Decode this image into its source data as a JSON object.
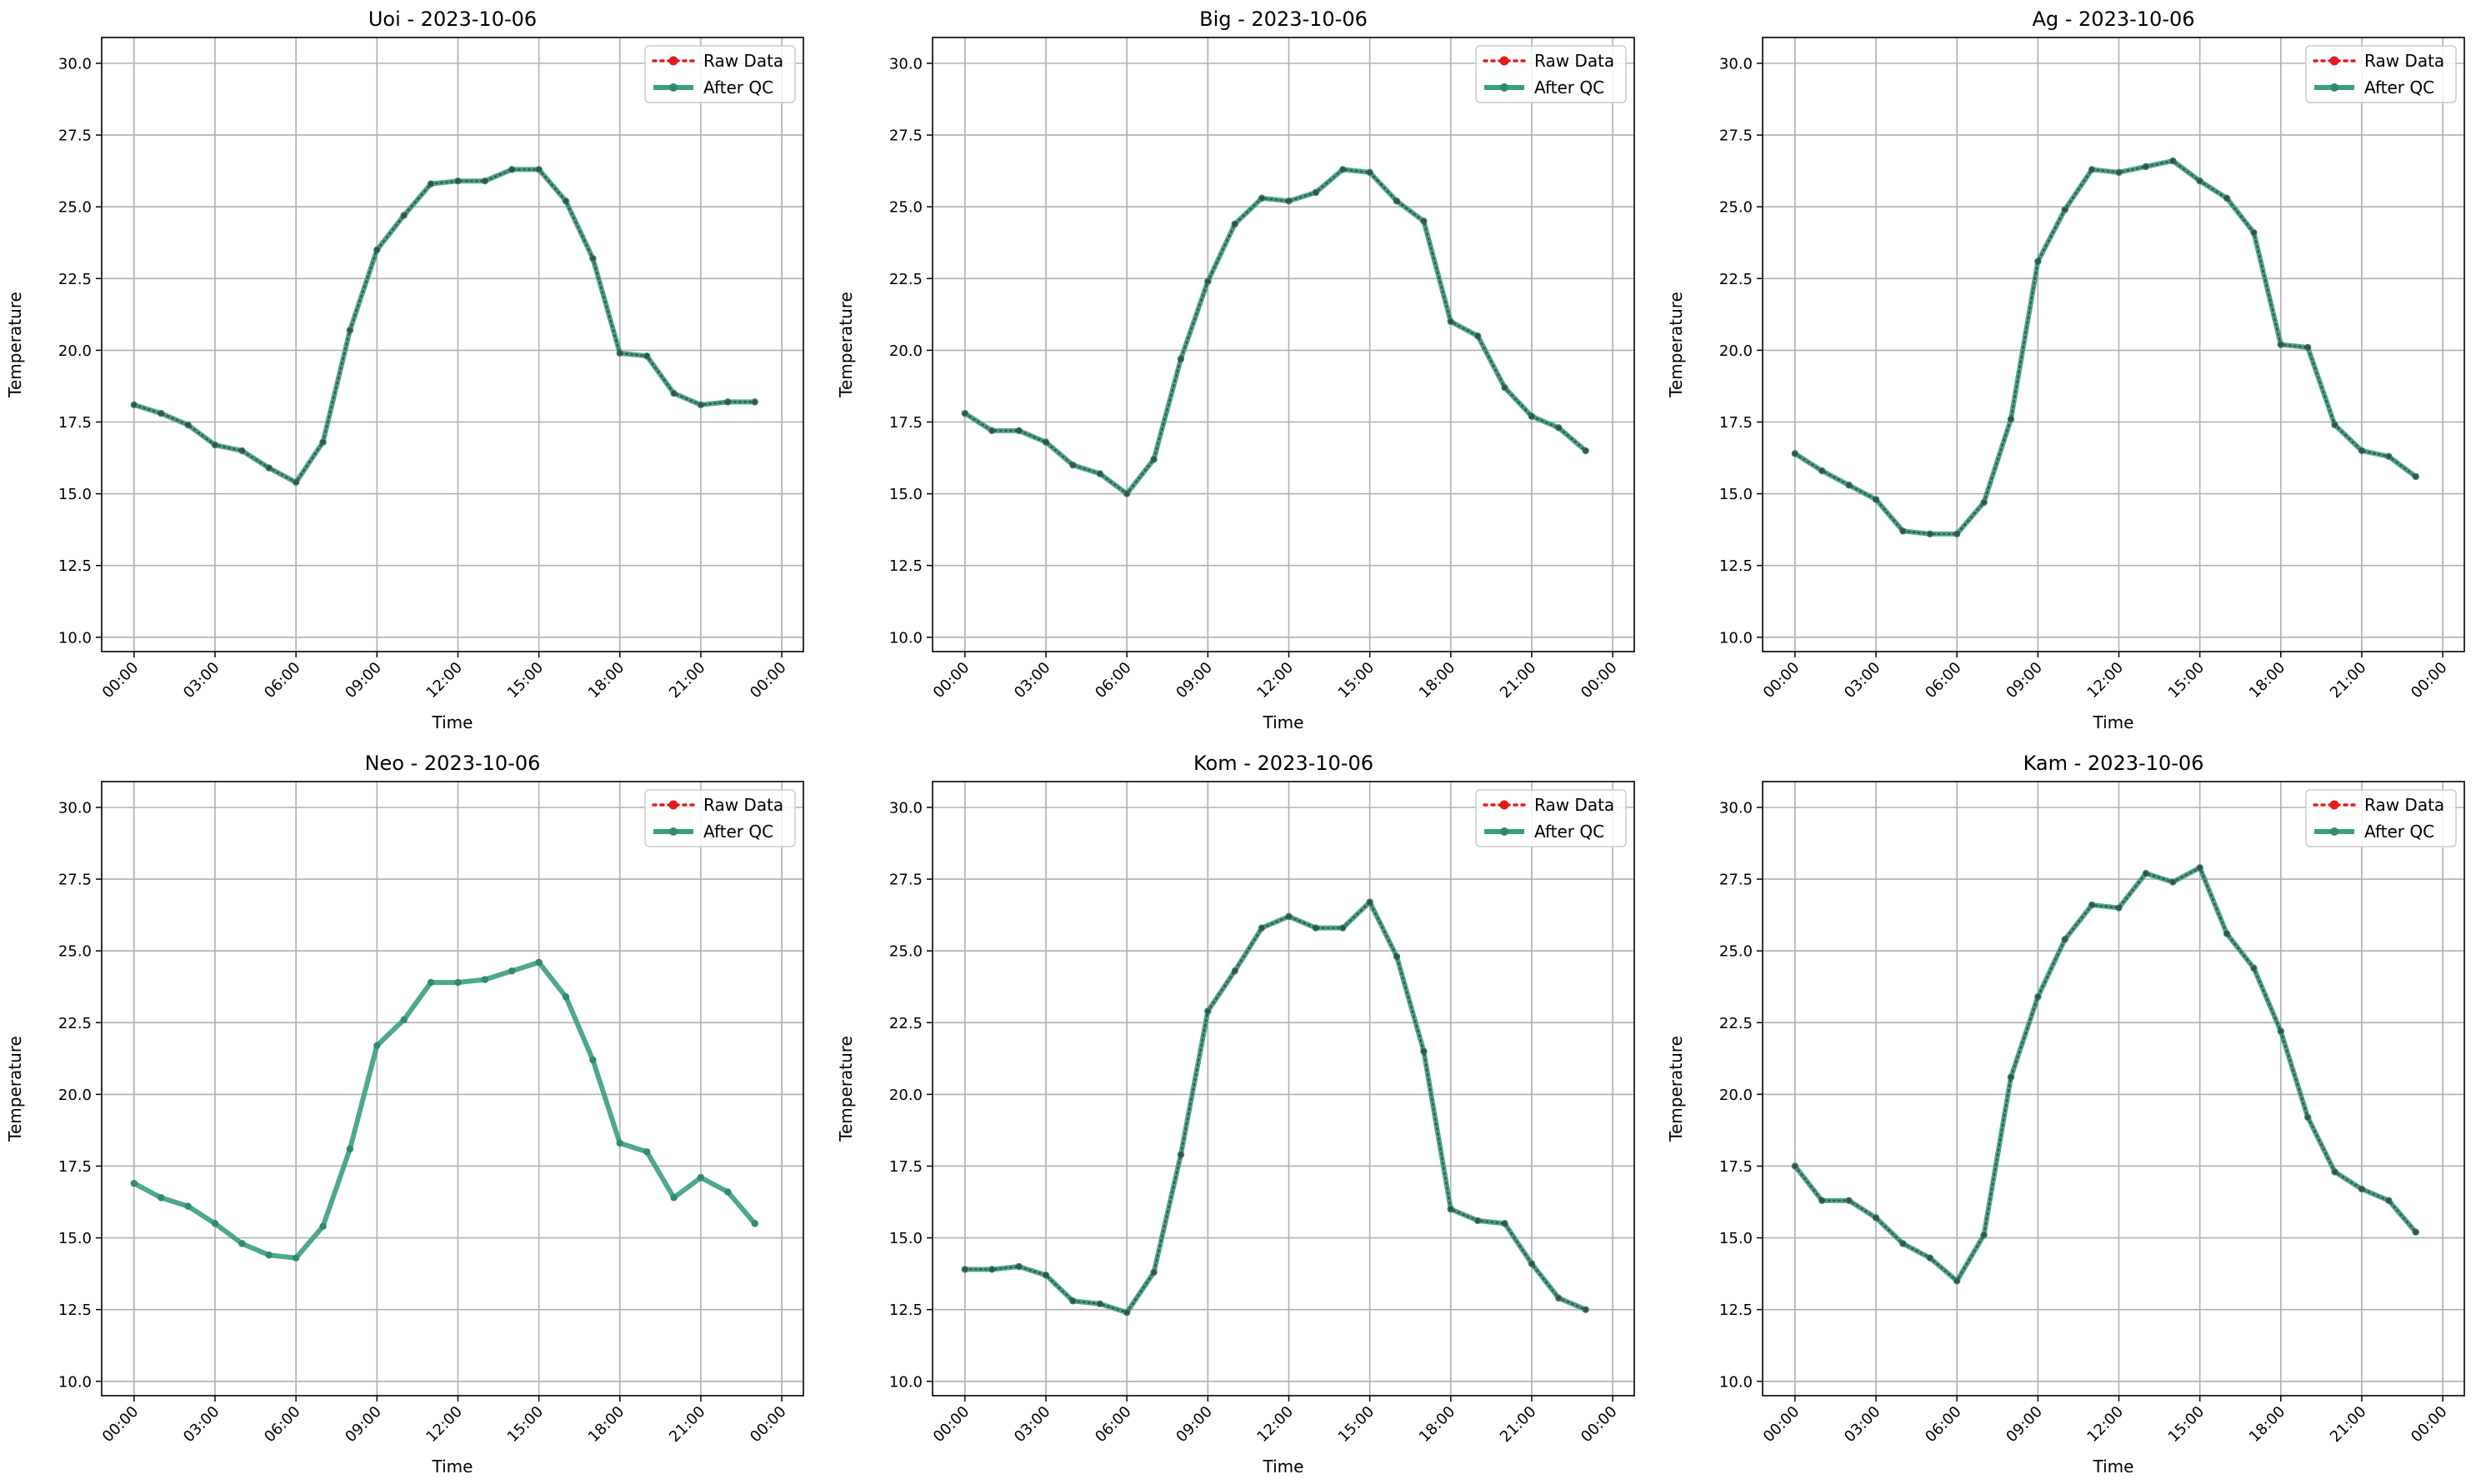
{
  "chart_data": [
    {
      "type": "line",
      "title": "Uoi - 2023-10-06",
      "xlabel": "Time",
      "ylabel": "Temperature",
      "ylim": [
        9.5,
        30.9
      ],
      "yticks": [
        "10.0",
        "12.5",
        "15.0",
        "17.5",
        "20.0",
        "22.5",
        "25.0",
        "27.5",
        "30.0"
      ],
      "xticks": [
        "00:00",
        "03:00",
        "06:00",
        "09:00",
        "12:00",
        "15:00",
        "18:00",
        "21:00",
        "00:00"
      ],
      "x_hours": [
        0,
        1,
        2,
        3,
        4,
        5,
        6,
        7,
        8,
        9,
        10,
        11,
        12,
        13,
        14,
        15,
        16,
        17,
        18,
        19,
        20,
        21,
        22,
        23
      ],
      "legend": [
        "Raw Data",
        "After QC"
      ],
      "grid": true,
      "legend_position": "top-right",
      "series": [
        {
          "name": "Raw Data",
          "values": [
            18.1,
            17.8,
            17.4,
            16.7,
            16.5,
            15.9,
            15.4,
            16.8,
            20.7,
            23.5,
            24.7,
            25.8,
            25.9,
            25.9,
            26.3,
            26.3,
            25.2,
            23.2,
            19.9,
            19.8,
            18.5,
            18.1,
            18.2,
            18.2
          ]
        },
        {
          "name": "After QC",
          "values": [
            18.1,
            17.8,
            17.4,
            16.7,
            16.5,
            15.9,
            15.4,
            16.8,
            20.7,
            23.5,
            24.7,
            25.8,
            25.9,
            25.9,
            26.3,
            26.3,
            25.2,
            23.2,
            19.9,
            19.8,
            18.5,
            18.1,
            18.2,
            18.2
          ]
        }
      ]
    },
    {
      "type": "line",
      "title": "Big - 2023-10-06",
      "xlabel": "Time",
      "ylabel": "Temperature",
      "ylim": [
        9.5,
        30.9
      ],
      "yticks": [
        "10.0",
        "12.5",
        "15.0",
        "17.5",
        "20.0",
        "22.5",
        "25.0",
        "27.5",
        "30.0"
      ],
      "xticks": [
        "00:00",
        "03:00",
        "06:00",
        "09:00",
        "12:00",
        "15:00",
        "18:00",
        "21:00",
        "00:00"
      ],
      "x_hours": [
        0,
        1,
        2,
        3,
        4,
        5,
        6,
        7,
        8,
        9,
        10,
        11,
        12,
        13,
        14,
        15,
        16,
        17,
        18,
        19,
        20,
        21,
        22,
        23
      ],
      "legend": [
        "Raw Data",
        "After QC"
      ],
      "grid": true,
      "legend_position": "top-right",
      "series": [
        {
          "name": "Raw Data",
          "values": [
            17.8,
            17.2,
            17.2,
            16.8,
            16.0,
            15.7,
            15.0,
            16.2,
            19.7,
            22.4,
            24.4,
            25.3,
            25.2,
            25.5,
            26.3,
            26.2,
            25.2,
            24.5,
            21.0,
            20.5,
            18.7,
            17.7,
            17.3,
            16.5
          ]
        },
        {
          "name": "After QC",
          "values": [
            17.8,
            17.2,
            17.2,
            16.8,
            16.0,
            15.7,
            15.0,
            16.2,
            19.7,
            22.4,
            24.4,
            25.3,
            25.2,
            25.5,
            26.3,
            26.2,
            25.2,
            24.5,
            21.0,
            20.5,
            18.7,
            17.7,
            17.3,
            16.5
          ]
        }
      ]
    },
    {
      "type": "line",
      "title": "Ag - 2023-10-06",
      "xlabel": "Time",
      "ylabel": "Temperature",
      "ylim": [
        9.5,
        30.9
      ],
      "yticks": [
        "10.0",
        "12.5",
        "15.0",
        "17.5",
        "20.0",
        "22.5",
        "25.0",
        "27.5",
        "30.0"
      ],
      "xticks": [
        "00:00",
        "03:00",
        "06:00",
        "09:00",
        "12:00",
        "15:00",
        "18:00",
        "21:00",
        "00:00"
      ],
      "x_hours": [
        0,
        1,
        2,
        3,
        4,
        5,
        6,
        7,
        8,
        9,
        10,
        11,
        12,
        13,
        14,
        15,
        16,
        17,
        18,
        19,
        20,
        21,
        22,
        23
      ],
      "legend": [
        "Raw Data",
        "After QC"
      ],
      "grid": true,
      "legend_position": "top-right",
      "series": [
        {
          "name": "Raw Data",
          "values": [
            16.4,
            15.8,
            15.3,
            14.8,
            13.7,
            13.6,
            13.6,
            14.7,
            17.6,
            23.1,
            24.9,
            26.3,
            26.2,
            26.4,
            26.6,
            25.9,
            25.3,
            24.1,
            20.2,
            20.1,
            17.4,
            16.5,
            16.3,
            15.6
          ]
        },
        {
          "name": "After QC",
          "values": [
            16.4,
            15.8,
            15.3,
            14.8,
            13.7,
            13.6,
            13.6,
            14.7,
            17.6,
            23.1,
            24.9,
            26.3,
            26.2,
            26.4,
            26.6,
            25.9,
            25.3,
            24.1,
            20.2,
            20.1,
            17.4,
            16.5,
            16.3,
            15.6
          ]
        }
      ]
    },
    {
      "type": "line",
      "title": "Neo - 2023-10-06",
      "xlabel": "Time",
      "ylabel": "Temperature",
      "ylim": [
        9.5,
        30.9
      ],
      "yticks": [
        "10.0",
        "12.5",
        "15.0",
        "17.5",
        "20.0",
        "22.5",
        "25.0",
        "27.5",
        "30.0"
      ],
      "xticks": [
        "00:00",
        "03:00",
        "06:00",
        "09:00",
        "12:00",
        "15:00",
        "18:00",
        "21:00",
        "00:00"
      ],
      "x_hours": [
        0,
        1,
        2,
        3,
        4,
        5,
        6,
        7,
        8,
        9,
        10,
        11,
        12,
        13,
        14,
        15,
        16,
        17,
        18,
        19,
        20,
        21,
        22,
        23
      ],
      "legend": [
        "Raw Data",
        "After QC"
      ],
      "grid": true,
      "legend_position": "top-right",
      "series": [
        {
          "name": "Raw Data",
          "values": []
        },
        {
          "name": "After QC",
          "values": [
            16.9,
            16.4,
            16.1,
            15.5,
            14.8,
            14.4,
            14.3,
            15.4,
            18.1,
            21.7,
            22.6,
            23.9,
            23.9,
            24.0,
            24.3,
            24.6,
            23.4,
            21.2,
            18.3,
            18.0,
            16.4,
            17.1,
            16.6,
            15.5
          ]
        }
      ]
    },
    {
      "type": "line",
      "title": "Kom - 2023-10-06",
      "xlabel": "Time",
      "ylabel": "Temperature",
      "ylim": [
        9.5,
        30.9
      ],
      "yticks": [
        "10.0",
        "12.5",
        "15.0",
        "17.5",
        "20.0",
        "22.5",
        "25.0",
        "27.5",
        "30.0"
      ],
      "xticks": [
        "00:00",
        "03:00",
        "06:00",
        "09:00",
        "12:00",
        "15:00",
        "18:00",
        "21:00",
        "00:00"
      ],
      "x_hours": [
        0,
        1,
        2,
        3,
        4,
        5,
        6,
        7,
        8,
        9,
        10,
        11,
        12,
        13,
        14,
        15,
        16,
        17,
        18,
        19,
        20,
        21,
        22,
        23
      ],
      "legend": [
        "Raw Data",
        "After QC"
      ],
      "grid": true,
      "legend_position": "top-right",
      "series": [
        {
          "name": "Raw Data",
          "values": [
            13.9,
            13.9,
            14.0,
            13.7,
            12.8,
            12.7,
            12.4,
            13.8,
            17.9,
            22.9,
            24.3,
            25.8,
            26.2,
            25.8,
            25.8,
            26.7,
            24.8,
            21.5,
            16.0,
            15.6,
            15.5,
            14.1,
            12.9,
            12.5
          ]
        },
        {
          "name": "After QC",
          "values": [
            13.9,
            13.9,
            14.0,
            13.7,
            12.8,
            12.7,
            12.4,
            13.8,
            17.9,
            22.9,
            24.3,
            25.8,
            26.2,
            25.8,
            25.8,
            26.7,
            24.8,
            21.5,
            16.0,
            15.6,
            15.5,
            14.1,
            12.9,
            12.5
          ]
        }
      ]
    },
    {
      "type": "line",
      "title": "Kam - 2023-10-06",
      "xlabel": "Time",
      "ylabel": "Temperature",
      "ylim": [
        9.5,
        30.9
      ],
      "yticks": [
        "10.0",
        "12.5",
        "15.0",
        "17.5",
        "20.0",
        "22.5",
        "25.0",
        "27.5",
        "30.0"
      ],
      "xticks": [
        "00:00",
        "03:00",
        "06:00",
        "09:00",
        "12:00",
        "15:00",
        "18:00",
        "21:00",
        "00:00"
      ],
      "x_hours": [
        0,
        1,
        2,
        3,
        4,
        5,
        6,
        7,
        8,
        9,
        10,
        11,
        12,
        13,
        14,
        15,
        16,
        17,
        18,
        19,
        20,
        21,
        22,
        23
      ],
      "legend": [
        "Raw Data",
        "After QC"
      ],
      "grid": true,
      "legend_position": "top-right",
      "series": [
        {
          "name": "Raw Data",
          "values": [
            17.5,
            16.3,
            16.3,
            15.7,
            14.8,
            14.3,
            13.5,
            15.1,
            20.6,
            23.4,
            25.4,
            26.6,
            26.5,
            27.7,
            27.4,
            27.9,
            25.6,
            24.4,
            22.2,
            19.2,
            17.3,
            16.7,
            16.3,
            15.2
          ]
        },
        {
          "name": "After QC",
          "values": [
            17.5,
            16.3,
            16.3,
            15.7,
            14.8,
            14.3,
            13.5,
            15.1,
            20.6,
            23.4,
            25.4,
            26.6,
            26.5,
            27.7,
            27.4,
            27.9,
            25.6,
            24.4,
            22.2,
            19.2,
            17.3,
            16.7,
            16.3,
            15.2
          ]
        }
      ]
    }
  ],
  "colors": {
    "raw": "#e41a1c",
    "qc": "#3a9e82",
    "qc_marker": "#2f8a6e",
    "overlap_dots": "#3d4a40",
    "grid": "#b0b0b0",
    "axes": "#000000"
  }
}
